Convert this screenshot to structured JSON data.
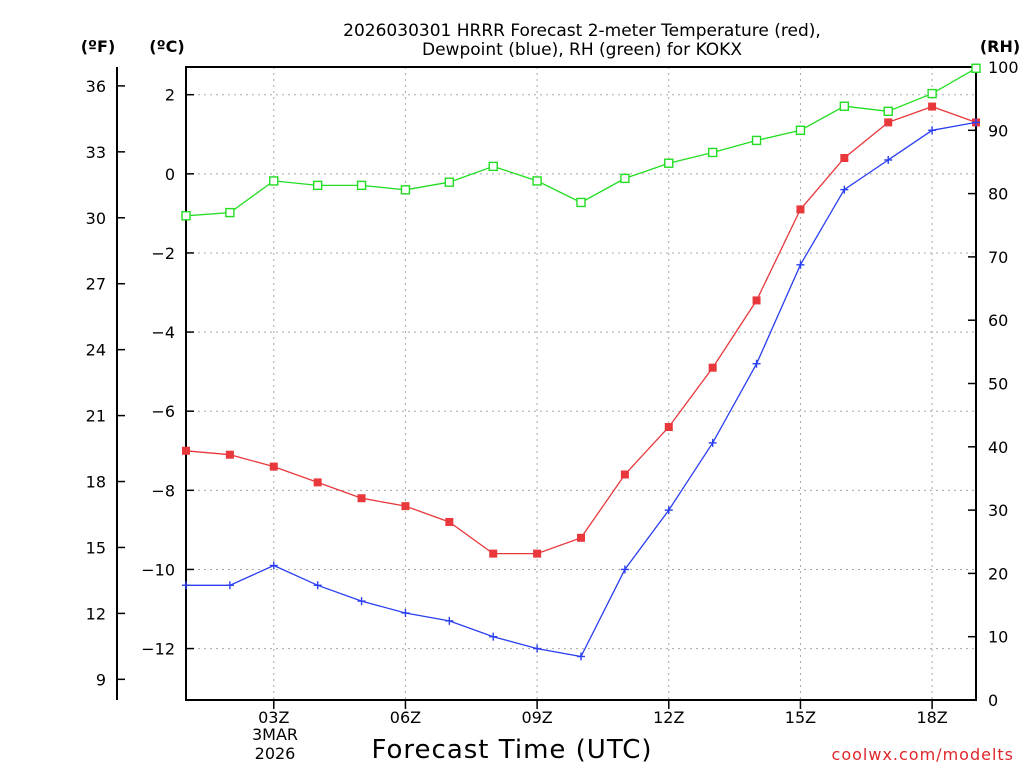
{
  "chart_data": {
    "type": "line",
    "title_line1": "2026030301 HRRR Forecast 2-meter Temperature (red),",
    "title_line2": "Dewpoint (blue), RH (green) for KOKX",
    "units": {
      "left_outer": "(ºF)",
      "left_inner": "(ºC)",
      "right": "(RH)"
    },
    "xlabel": "Forecast Time (UTC)",
    "date_label_1": "3MAR",
    "date_label_2": "2026",
    "credit": "coolwx.com/modelts",
    "x_hours": [
      1,
      2,
      3,
      4,
      5,
      6,
      7,
      8,
      9,
      10,
      11,
      12,
      13,
      14,
      15,
      16,
      17,
      18,
      19
    ],
    "xlim": [
      1,
      19
    ],
    "x_ticks": [
      {
        "hour": 3,
        "label": "03Z"
      },
      {
        "hour": 6,
        "label": "06Z"
      },
      {
        "hour": 9,
        "label": "09Z"
      },
      {
        "hour": 12,
        "label": "12Z"
      },
      {
        "hour": 15,
        "label": "15Z"
      },
      {
        "hour": 18,
        "label": "18Z"
      }
    ],
    "ylim_c": [
      -13.3,
      2.7
    ],
    "y_ticks_c": [
      2,
      0,
      -2,
      -4,
      -6,
      -8,
      -10,
      -12
    ],
    "y_tick_labels_c": [
      "2",
      "0",
      "−2",
      "−4",
      "−6",
      "−8",
      "−10",
      "−12"
    ],
    "y_ticks_f": [
      36,
      33,
      30,
      27,
      24,
      21,
      18,
      15,
      12,
      9
    ],
    "y_ticks_f_labels": [
      "36",
      "33",
      "30",
      "27",
      "24",
      "21",
      "18",
      "15",
      "12",
      "9"
    ],
    "ylim_rh": [
      0,
      100
    ],
    "y_ticks_rh": [
      0,
      10,
      20,
      30,
      40,
      50,
      60,
      70,
      80,
      90,
      100
    ],
    "y_ticks_rh_labels": [
      "0",
      "10",
      "20",
      "30",
      "40",
      "50",
      "60",
      "70",
      "80",
      "90",
      "100"
    ],
    "grid": true,
    "series": [
      {
        "name": "Temperature",
        "axis": "c",
        "color": "#e8383c",
        "marker": "filled-square",
        "values": [
          -7.0,
          -7.1,
          -7.4,
          -7.8,
          -8.2,
          -8.4,
          -8.8,
          -9.6,
          -9.6,
          -9.2,
          -7.6,
          -6.4,
          -4.9,
          -3.2,
          -0.9,
          0.4,
          1.3,
          1.7,
          1.3
        ]
      },
      {
        "name": "Dewpoint",
        "axis": "c",
        "color": "#2a3ff0",
        "marker": "plus",
        "values": [
          -10.4,
          -10.4,
          -9.9,
          -10.4,
          -10.8,
          -11.1,
          -11.3,
          -11.7,
          -12.0,
          -12.2,
          -10.0,
          -8.5,
          -6.8,
          -4.8,
          -2.3,
          -0.4,
          0.35,
          1.1,
          1.3
        ]
      },
      {
        "name": "RH",
        "axis": "rh",
        "color": "#22dd22",
        "marker": "open-square",
        "values": [
          76.5,
          77.0,
          82.0,
          81.3,
          81.3,
          80.6,
          81.8,
          84.3,
          82.0,
          78.6,
          82.4,
          84.8,
          86.5,
          88.4,
          90.0,
          93.8,
          93.0,
          95.8,
          99.8
        ]
      }
    ]
  }
}
